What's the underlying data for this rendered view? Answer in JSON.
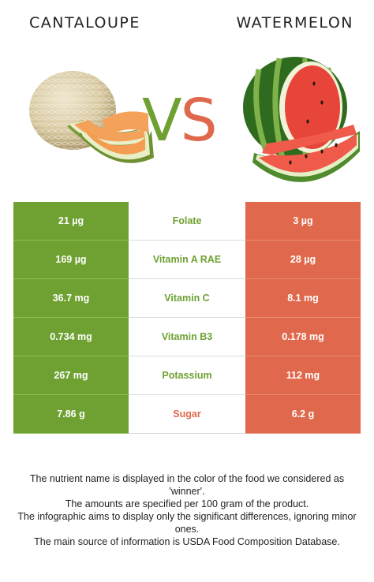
{
  "titles": {
    "left": "CANTALOUPE",
    "right": "WATERMELON"
  },
  "vs": {
    "v": "V",
    "s": "S"
  },
  "colors": {
    "cantaloupe": "#6ea132",
    "watermelon": "#e0684c"
  },
  "rows": [
    {
      "left": "21 µg",
      "nutrient": "Folate",
      "right": "3 µg",
      "winner": "cantaloupe"
    },
    {
      "left": "169 µg",
      "nutrient": "Vitamin A RAE",
      "right": "28 µg",
      "winner": "cantaloupe"
    },
    {
      "left": "36.7 mg",
      "nutrient": "Vitamin C",
      "right": "8.1 mg",
      "winner": "cantaloupe"
    },
    {
      "left": "0.734 mg",
      "nutrient": "Vitamin B3",
      "right": "0.178 mg",
      "winner": "cantaloupe"
    },
    {
      "left": "267 mg",
      "nutrient": "Potassium",
      "right": "112 mg",
      "winner": "cantaloupe"
    },
    {
      "left": "7.86 g",
      "nutrient": "Sugar",
      "right": "6.2 g",
      "winner": "watermelon"
    }
  ],
  "notes": [
    "The nutrient name is displayed in the color of the food we considered as 'winner'.",
    "The amounts are specified per 100 gram of the product.",
    "The infographic aims to display only the significant differences, ignoring minor ones.",
    "The main source of information is USDA Food Composition Database."
  ]
}
